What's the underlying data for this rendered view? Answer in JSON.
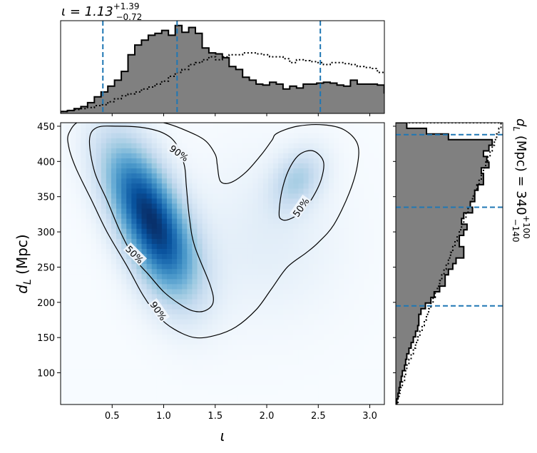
{
  "chart_data": [
    {
      "type": "heatmap",
      "panel": "joint",
      "xlabel": "ι",
      "ylabel_main": "d",
      "ylabel_sub": "L",
      "ylabel_unit": " (Mpc)",
      "xlim": [
        0.0,
        3.14159
      ],
      "ylim": [
        55,
        455
      ],
      "x_ticks": [
        0.5,
        1.0,
        1.5,
        2.0,
        2.5,
        3.0
      ],
      "x_tick_labels": [
        "0.5",
        "1.0",
        "1.5",
        "2.0",
        "2.5",
        "3.0"
      ],
      "y_ticks": [
        100,
        150,
        200,
        250,
        300,
        350,
        400,
        450
      ],
      "y_tick_labels": [
        "100",
        "150",
        "200",
        "250",
        "300",
        "350",
        "400",
        "450"
      ],
      "colormap": "Blues",
      "density_modes": [
        {
          "x": 0.8,
          "y": 340,
          "sx": 0.28,
          "sy": 65,
          "rho": -0.55,
          "weight": 1.0
        },
        {
          "x": 1.05,
          "y": 260,
          "sx": 0.25,
          "sy": 55,
          "rho": -0.3,
          "weight": 0.45
        },
        {
          "x": 2.3,
          "y": 375,
          "sx": 0.18,
          "sy": 30,
          "rho": 0.3,
          "weight": 0.35
        },
        {
          "x": 2.0,
          "y": 290,
          "sx": 0.5,
          "sy": 80,
          "rho": 0.0,
          "weight": 0.12
        }
      ],
      "contours": [
        {
          "label": "90%",
          "label_positions": [
            [
              1.15,
              412,
              35
            ],
            [
              0.95,
              188,
              55
            ]
          ],
          "points": [
            [
              0.08,
              440
            ],
            [
              0.2,
              458
            ],
            [
              0.5,
              458
            ],
            [
              0.8,
              458
            ],
            [
              1.0,
              455
            ],
            [
              1.2,
              445
            ],
            [
              1.4,
              430
            ],
            [
              1.5,
              410
            ],
            [
              1.52,
              395
            ],
            [
              1.55,
              372
            ],
            [
              1.65,
              370
            ],
            [
              1.8,
              385
            ],
            [
              1.95,
              410
            ],
            [
              2.05,
              430
            ],
            [
              2.1,
              440
            ],
            [
              2.3,
              450
            ],
            [
              2.55,
              452
            ],
            [
              2.75,
              445
            ],
            [
              2.88,
              425
            ],
            [
              2.88,
              395
            ],
            [
              2.8,
              355
            ],
            [
              2.65,
              310
            ],
            [
              2.5,
              285
            ],
            [
              2.38,
              270
            ],
            [
              2.2,
              250
            ],
            [
              2.05,
              220
            ],
            [
              1.9,
              190
            ],
            [
              1.7,
              165
            ],
            [
              1.5,
              153
            ],
            [
              1.3,
              150
            ],
            [
              1.1,
              162
            ],
            [
              0.95,
              180
            ],
            [
              0.8,
              210
            ],
            [
              0.65,
              250
            ],
            [
              0.45,
              300
            ],
            [
              0.3,
              345
            ],
            [
              0.15,
              390
            ],
            [
              0.08,
              420
            ]
          ]
        },
        {
          "label": "50%",
          "label_positions": [
            [
              0.72,
              268,
              45
            ]
          ],
          "points": [
            [
              0.28,
              430
            ],
            [
              0.35,
              448
            ],
            [
              0.55,
              450
            ],
            [
              0.8,
              448
            ],
            [
              1.0,
              440
            ],
            [
              1.12,
              425
            ],
            [
              1.2,
              395
            ],
            [
              1.22,
              365
            ],
            [
              1.25,
              320
            ],
            [
              1.3,
              280
            ],
            [
              1.45,
              225
            ],
            [
              1.48,
              200
            ],
            [
              1.4,
              188
            ],
            [
              1.28,
              188
            ],
            [
              1.15,
              198
            ],
            [
              1.0,
              215
            ],
            [
              0.85,
              240
            ],
            [
              0.72,
              262
            ],
            [
              0.58,
              300
            ],
            [
              0.45,
              345
            ],
            [
              0.33,
              385
            ]
          ]
        },
        {
          "label": "50%",
          "label_positions": [
            [
              2.33,
              335,
              -55
            ]
          ],
          "points": [
            [
              2.12,
              328
            ],
            [
              2.15,
              360
            ],
            [
              2.22,
              390
            ],
            [
              2.32,
              410
            ],
            [
              2.45,
              415
            ],
            [
              2.55,
              400
            ],
            [
              2.53,
              375
            ],
            [
              2.45,
              350
            ],
            [
              2.35,
              330
            ],
            [
              2.22,
              318
            ],
            [
              2.14,
              318
            ]
          ]
        }
      ]
    },
    {
      "type": "histogram",
      "panel": "top-marginal",
      "title_main": "ι = 1.13",
      "title_sup": "+1.39",
      "title_sub": "−0.72",
      "quantile_lines": [
        0.41,
        1.13,
        2.52
      ],
      "line_color": "#1f77b4",
      "fill_color": "#808080",
      "bin_start": 0.0,
      "bin_width": 0.0654,
      "posterior_counts": [
        2,
        3,
        5,
        7,
        11,
        17,
        22,
        28,
        34,
        43,
        60,
        70,
        75,
        80,
        82,
        85,
        80,
        90,
        83,
        88,
        82,
        67,
        62,
        61,
        57,
        48,
        45,
        37,
        34,
        30,
        29,
        32,
        30,
        25,
        28,
        26,
        30,
        30,
        31,
        32,
        31,
        29,
        28,
        34,
        30,
        30,
        30,
        29,
        21,
        20,
        17,
        13,
        12,
        11,
        9,
        7,
        5,
        3
      ],
      "prior_counts": [
        2,
        3,
        4,
        5,
        6,
        8,
        9,
        12,
        15,
        18,
        20,
        22,
        25,
        27,
        30,
        33,
        38,
        42,
        45,
        50,
        52,
        55,
        58,
        55,
        58,
        60,
        60,
        62,
        62,
        61,
        60,
        58,
        58,
        56,
        52,
        55,
        54,
        53,
        52,
        50,
        52,
        52,
        51,
        50,
        48,
        47,
        46,
        42,
        42,
        37,
        35,
        32,
        28,
        22,
        18,
        14,
        10,
        6
      ]
    },
    {
      "type": "histogram",
      "panel": "right-marginal",
      "title_main": "d",
      "title_sub_L": "L",
      "title_rest": " (Mpc) = 340",
      "title_sup": "+100",
      "title_sub": "−140",
      "quantile_lines": [
        195,
        335,
        438
      ],
      "line_color": "#1f77b4",
      "fill_color": "#808080",
      "bin_start": 55,
      "bin_width": 8.0,
      "posterior_counts": [
        1,
        2,
        3,
        4,
        5,
        6,
        8,
        9,
        10,
        12,
        14,
        16,
        18,
        20,
        21,
        21,
        23,
        27,
        32,
        35,
        40,
        45,
        45,
        48,
        52,
        55,
        62,
        62,
        58,
        58,
        62,
        65,
        60,
        62,
        70,
        68,
        72,
        72,
        75,
        80,
        80,
        78,
        85,
        83,
        80,
        85,
        88,
        48,
        28,
        10
      ],
      "prior_counts": [
        2,
        3,
        4,
        6,
        8,
        9,
        10,
        12,
        14,
        16,
        18,
        20,
        22,
        24,
        26,
        28,
        30,
        32,
        34,
        36,
        38,
        40,
        42,
        44,
        46,
        48,
        50,
        52,
        54,
        56,
        58,
        60,
        62,
        64,
        66,
        68,
        70,
        72,
        74,
        76,
        78,
        80,
        82,
        84,
        86,
        88,
        90,
        92,
        94,
        96
      ]
    }
  ]
}
